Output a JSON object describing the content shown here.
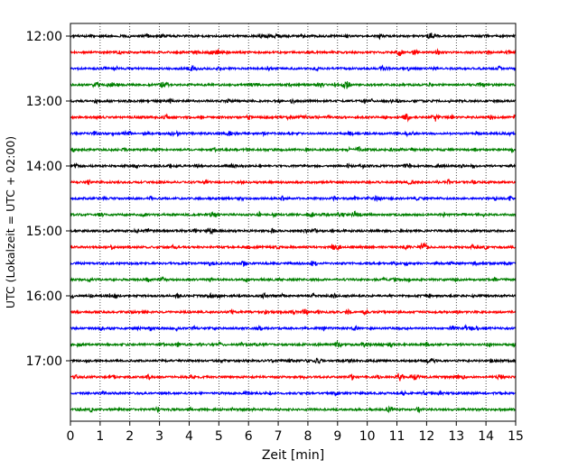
{
  "chart_data": {
    "type": "line",
    "title": "",
    "xlabel": "Zeit  [min]",
    "ylabel": "UTC (Lokalzeit = UTC + 02:00)",
    "xlim": [
      0,
      15
    ],
    "x_ticks": [
      0,
      1,
      2,
      3,
      4,
      5,
      6,
      7,
      8,
      9,
      10,
      11,
      12,
      13,
      14,
      15
    ],
    "x_tick_labels": [
      "0",
      "1",
      "2",
      "3",
      "4",
      "5",
      "6",
      "7",
      "8",
      "9",
      "10",
      "11",
      "12",
      "13",
      "14",
      "15"
    ],
    "y_tick_labels": [
      "12:00",
      "13:00",
      "14:00",
      "15:00",
      "16:00",
      "17:00"
    ],
    "grid": {
      "x": "dotted",
      "y": false
    },
    "trace_minutes": 15,
    "color_cycle": [
      "#000000",
      "#ff0000",
      "#0000ff",
      "#008000"
    ],
    "traces": [
      {
        "start": "12:00",
        "color": "#000000",
        "events": [
          {
            "x": 12.2,
            "amp": 3.5
          }
        ]
      },
      {
        "start": "12:15",
        "color": "#ff0000",
        "events": [
          {
            "x": 11.1,
            "amp": 3.5
          },
          {
            "x": 11.6,
            "amp": 2.0
          }
        ]
      },
      {
        "start": "12:30",
        "color": "#0000ff",
        "events": []
      },
      {
        "start": "12:45",
        "color": "#008000",
        "events": [
          {
            "x": 9.3,
            "amp": 4.0
          }
        ]
      },
      {
        "start": "13:00",
        "color": "#000000",
        "events": []
      },
      {
        "start": "13:15",
        "color": "#ff0000",
        "events": [
          {
            "x": 11.3,
            "amp": 4.5
          },
          {
            "x": 12.3,
            "amp": 4.0
          }
        ]
      },
      {
        "start": "13:30",
        "color": "#0000ff",
        "events": []
      },
      {
        "start": "13:45",
        "color": "#008000",
        "events": [
          {
            "x": 9.7,
            "amp": 3.0
          }
        ]
      },
      {
        "start": "14:00",
        "color": "#000000",
        "events": []
      },
      {
        "start": "14:15",
        "color": "#ff0000",
        "events": []
      },
      {
        "start": "14:30",
        "color": "#0000ff",
        "events": []
      },
      {
        "start": "14:45",
        "color": "#008000",
        "events": [
          {
            "x": 9.6,
            "amp": 3.0
          }
        ]
      },
      {
        "start": "15:00",
        "color": "#000000",
        "events": [
          {
            "x": 4.7,
            "amp": 3.0
          }
        ]
      },
      {
        "start": "15:15",
        "color": "#ff0000",
        "events": [
          {
            "x": 11.9,
            "amp": 4.5
          }
        ]
      },
      {
        "start": "15:30",
        "color": "#0000ff",
        "events": []
      },
      {
        "start": "15:45",
        "color": "#008000",
        "events": []
      },
      {
        "start": "16:00",
        "color": "#000000",
        "events": []
      },
      {
        "start": "16:15",
        "color": "#ff0000",
        "events": [
          {
            "x": 7.9,
            "amp": 3.0
          }
        ]
      },
      {
        "start": "16:30",
        "color": "#0000ff",
        "events": []
      },
      {
        "start": "16:45",
        "color": "#008000",
        "events": [
          {
            "x": 9.0,
            "amp": 3.0
          },
          {
            "x": 9.9,
            "amp": 2.5
          }
        ]
      },
      {
        "start": "17:00",
        "color": "#000000",
        "events": []
      },
      {
        "start": "17:15",
        "color": "#ff0000",
        "events": [
          {
            "x": 11.1,
            "amp": 3.5
          },
          {
            "x": 11.6,
            "amp": 3.0
          }
        ]
      },
      {
        "start": "17:30",
        "color": "#0000ff",
        "events": []
      },
      {
        "start": "17:45",
        "color": "#008000",
        "events": []
      }
    ]
  }
}
